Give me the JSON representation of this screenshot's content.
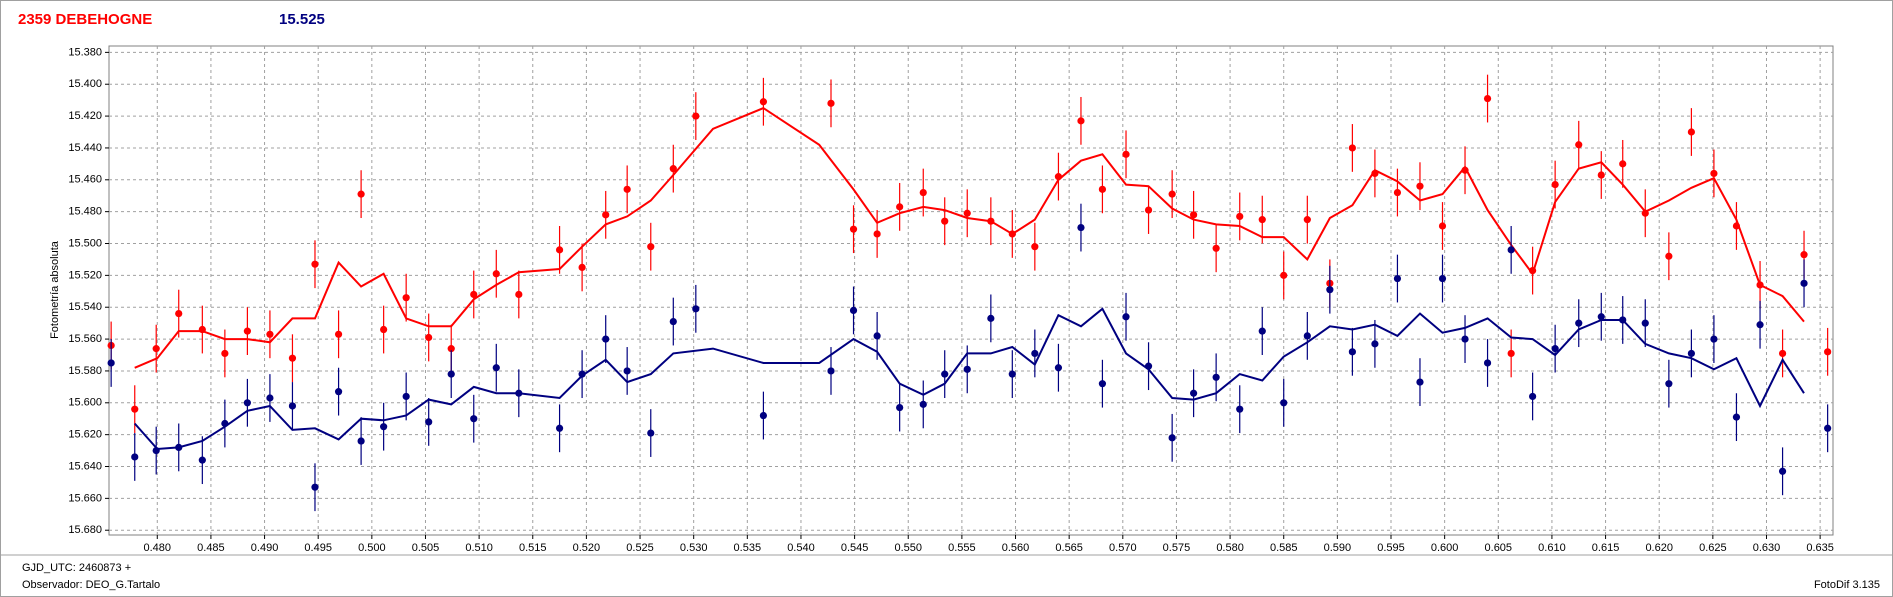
{
  "chart_data": {
    "type": "scatter",
    "title": "2359 DEBEHOGNE",
    "subtitle": "15.525",
    "ylabel": "Fotometría absoluta",
    "xlim": [
      0.4755,
      0.6362
    ],
    "ylim": [
      15.376,
      15.683
    ],
    "y_inverted": true,
    "grid": true,
    "xticks": [
      {
        "value": 0.48,
        "label": "0.480"
      },
      {
        "value": 0.485,
        "label": "0.485"
      },
      {
        "value": 0.49,
        "label": "0.490"
      },
      {
        "value": 0.495,
        "label": "0.495"
      },
      {
        "value": 0.5,
        "label": "0.500"
      },
      {
        "value": 0.505,
        "label": "0.505"
      },
      {
        "value": 0.51,
        "label": "0.510"
      },
      {
        "value": 0.515,
        "label": "0.515"
      },
      {
        "value": 0.52,
        "label": "0.520"
      },
      {
        "value": 0.525,
        "label": "0.525"
      },
      {
        "value": 0.53,
        "label": "0.530"
      },
      {
        "value": 0.535,
        "label": "0.535"
      },
      {
        "value": 0.54,
        "label": "0.540"
      },
      {
        "value": 0.545,
        "label": "0.545"
      },
      {
        "value": 0.55,
        "label": "0.550"
      },
      {
        "value": 0.555,
        "label": "0.555"
      },
      {
        "value": 0.56,
        "label": "0.560"
      },
      {
        "value": 0.565,
        "label": "0.565"
      },
      {
        "value": 0.57,
        "label": "0.570"
      },
      {
        "value": 0.575,
        "label": "0.575"
      },
      {
        "value": 0.58,
        "label": "0.580"
      },
      {
        "value": 0.585,
        "label": "0.585"
      },
      {
        "value": 0.59,
        "label": "0.590"
      },
      {
        "value": 0.595,
        "label": "0.595"
      },
      {
        "value": 0.6,
        "label": "0.600"
      },
      {
        "value": 0.605,
        "label": "0.605"
      },
      {
        "value": 0.61,
        "label": "0.610"
      },
      {
        "value": 0.615,
        "label": "0.615"
      },
      {
        "value": 0.62,
        "label": "0.620"
      },
      {
        "value": 0.625,
        "label": "0.625"
      },
      {
        "value": 0.63,
        "label": "0.630"
      },
      {
        "value": 0.635,
        "label": "0.635"
      }
    ],
    "yticks": [
      {
        "value": 15.38,
        "label": "15.380"
      },
      {
        "value": 15.4,
        "label": "15.400"
      },
      {
        "value": 15.42,
        "label": "15.420"
      },
      {
        "value": 15.44,
        "label": "15.440"
      },
      {
        "value": 15.46,
        "label": "15.460"
      },
      {
        "value": 15.48,
        "label": "15.480"
      },
      {
        "value": 15.5,
        "label": "15.500"
      },
      {
        "value": 15.52,
        "label": "15.520"
      },
      {
        "value": 15.54,
        "label": "15.540"
      },
      {
        "value": 15.56,
        "label": "15.560"
      },
      {
        "value": 15.58,
        "label": "15.580"
      },
      {
        "value": 15.6,
        "label": "15.600"
      },
      {
        "value": 15.62,
        "label": "15.620"
      },
      {
        "value": 15.64,
        "label": "15.640"
      },
      {
        "value": 15.66,
        "label": "15.660"
      },
      {
        "value": 15.68,
        "label": "15.680"
      }
    ],
    "x": [
      0.4757,
      0.4779,
      0.4799,
      0.482,
      0.4842,
      0.4863,
      0.4884,
      0.4905,
      0.4926,
      0.4947,
      0.4969,
      0.499,
      0.5011,
      0.5032,
      0.5053,
      0.5074,
      0.5095,
      0.5116,
      0.5137,
      0.5175,
      0.5196,
      0.5218,
      0.5238,
      0.526,
      0.5281,
      0.5302,
      0.5365,
      0.5428,
      0.5449,
      0.5471,
      0.5492,
      0.5514,
      0.5534,
      0.5555,
      0.5577,
      0.5597,
      0.5618,
      0.564,
      0.5661,
      0.5681,
      0.5703,
      0.5724,
      0.5746,
      0.5766,
      0.5787,
      0.5809,
      0.583,
      0.585,
      0.5872,
      0.5893,
      0.5914,
      0.5935,
      0.5956,
      0.5977,
      0.5998,
      0.6019,
      0.604,
      0.6062,
      0.6082,
      0.6103,
      0.6125,
      0.6146,
      0.6166,
      0.6187,
      0.6209,
      0.623,
      0.6251,
      0.6272,
      0.6294,
      0.6315,
      0.6335,
      0.6357
    ],
    "fit_x": [
      0.4779,
      0.48,
      0.482,
      0.4842,
      0.4863,
      0.4884,
      0.4905,
      0.4926,
      0.4947,
      0.4969,
      0.499,
      0.5011,
      0.5032,
      0.5053,
      0.5074,
      0.5095,
      0.5116,
      0.5137,
      0.5175,
      0.5196,
      0.5218,
      0.5238,
      0.526,
      0.5281,
      0.5318,
      0.5365,
      0.5417,
      0.5449,
      0.5471,
      0.5492,
      0.5514,
      0.5534,
      0.5555,
      0.5577,
      0.5597,
      0.5618,
      0.564,
      0.5661,
      0.5681,
      0.5703,
      0.5724,
      0.5746,
      0.5766,
      0.5787,
      0.5809,
      0.583,
      0.585,
      0.5872,
      0.5893,
      0.5914,
      0.5935,
      0.5956,
      0.5977,
      0.5998,
      0.6019,
      0.604,
      0.6062,
      0.6082,
      0.6103,
      0.6125,
      0.6146,
      0.6166,
      0.6187,
      0.6209,
      0.623,
      0.6251,
      0.6272,
      0.6294,
      0.6315,
      0.6335
    ],
    "series": [
      {
        "color": "#ff0000",
        "error": 0.015,
        "values": [
          15.564,
          15.604,
          15.566,
          15.544,
          15.554,
          15.569,
          15.555,
          15.557,
          15.572,
          15.513,
          15.557,
          15.469,
          15.554,
          15.534,
          15.559,
          15.566,
          15.532,
          15.519,
          15.532,
          15.504,
          15.515,
          15.482,
          15.466,
          15.502,
          15.453,
          15.42,
          15.411,
          15.412,
          15.491,
          15.494,
          15.477,
          15.468,
          15.486,
          15.481,
          15.486,
          15.494,
          15.502,
          15.458,
          15.423,
          15.466,
          15.444,
          15.479,
          15.469,
          15.482,
          15.503,
          15.483,
          15.485,
          15.52,
          15.485,
          15.525,
          15.44,
          15.456,
          15.468,
          15.464,
          15.489,
          15.454,
          15.409,
          15.569,
          15.517,
          15.463,
          15.438,
          15.457,
          15.45,
          15.481,
          15.508,
          15.43,
          15.456,
          15.489,
          15.526,
          15.569,
          15.507,
          15.568
        ],
        "fit_values": [
          15.578,
          15.572,
          15.555,
          15.555,
          15.56,
          15.56,
          15.562,
          15.547,
          15.547,
          15.512,
          15.527,
          15.519,
          15.547,
          15.552,
          15.552,
          15.535,
          15.526,
          15.518,
          15.516,
          15.502,
          15.488,
          15.483,
          15.473,
          15.457,
          15.428,
          15.415,
          15.438,
          15.466,
          15.487,
          15.481,
          15.477,
          15.479,
          15.484,
          15.486,
          15.494,
          15.485,
          15.46,
          15.448,
          15.444,
          15.463,
          15.464,
          15.478,
          15.485,
          15.488,
          15.489,
          15.496,
          15.496,
          15.51,
          15.484,
          15.476,
          15.454,
          15.461,
          15.473,
          15.469,
          15.452,
          15.479,
          15.501,
          15.519,
          15.474,
          15.453,
          15.449,
          15.463,
          15.48,
          15.473,
          15.465,
          15.459,
          15.485,
          15.526,
          15.533,
          15.549
        ]
      },
      {
        "color": "#000080",
        "error": 0.015,
        "values": [
          15.575,
          15.634,
          15.63,
          15.628,
          15.636,
          15.613,
          15.6,
          15.597,
          15.602,
          15.653,
          15.593,
          15.624,
          15.615,
          15.596,
          15.612,
          15.582,
          15.61,
          15.578,
          15.594,
          15.616,
          15.582,
          15.56,
          15.58,
          15.619,
          15.549,
          15.541,
          15.608,
          15.58,
          15.542,
          15.558,
          15.603,
          15.601,
          15.582,
          15.579,
          15.547,
          15.582,
          15.569,
          15.578,
          15.49,
          15.588,
          15.546,
          15.577,
          15.622,
          15.594,
          15.584,
          15.604,
          15.555,
          15.6,
          15.558,
          15.529,
          15.568,
          15.563,
          15.522,
          15.587,
          15.522,
          15.56,
          15.575,
          15.504,
          15.596,
          15.566,
          15.55,
          15.546,
          15.548,
          15.55,
          15.588,
          15.569,
          15.56,
          15.609,
          15.551,
          15.643,
          15.525,
          15.616
        ],
        "fit_values": [
          15.613,
          15.629,
          15.628,
          15.624,
          15.615,
          15.605,
          15.602,
          15.617,
          15.616,
          15.623,
          15.61,
          15.611,
          15.608,
          15.598,
          15.601,
          15.59,
          15.594,
          15.594,
          15.597,
          15.583,
          15.573,
          15.587,
          15.582,
          15.569,
          15.566,
          15.575,
          15.575,
          15.56,
          15.568,
          15.588,
          15.595,
          15.588,
          15.569,
          15.569,
          15.565,
          15.576,
          15.545,
          15.552,
          15.541,
          15.569,
          15.579,
          15.597,
          15.598,
          15.594,
          15.582,
          15.586,
          15.571,
          15.562,
          15.552,
          15.554,
          15.551,
          15.558,
          15.544,
          15.556,
          15.553,
          15.547,
          15.559,
          15.56,
          15.57,
          15.554,
          15.548,
          15.548,
          15.563,
          15.569,
          15.572,
          15.579,
          15.572,
          15.602,
          15.573,
          15.594
        ]
      }
    ]
  },
  "footer": {
    "date": "GJD_UTC: 2460873 +",
    "observer": "Observador: DEO_G.Tartalo",
    "software": "FotoDif 3.135"
  }
}
